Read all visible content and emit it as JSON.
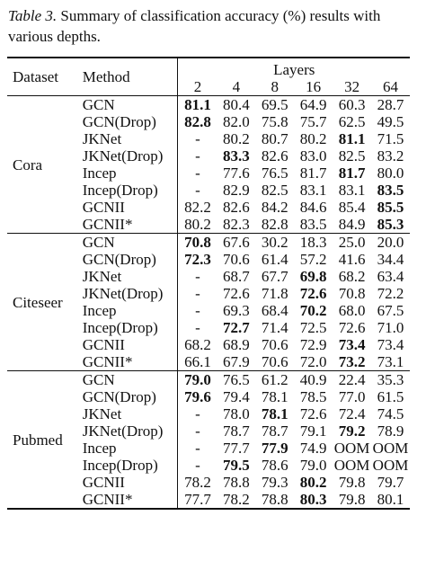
{
  "caption": {
    "label": "Table 3.",
    "text": " Summary of classification accuracy (%) results with various depths."
  },
  "header": {
    "dataset": "Dataset",
    "method": "Method",
    "layers": "Layers",
    "depths": [
      "2",
      "4",
      "8",
      "16",
      "32",
      "64"
    ]
  },
  "groups": [
    {
      "dataset": "Cora",
      "rows": [
        {
          "method": "GCN",
          "values": [
            "81.1",
            "80.4",
            "69.5",
            "64.9",
            "60.3",
            "28.7"
          ],
          "bold": [
            0
          ]
        },
        {
          "method": "GCN(Drop)",
          "values": [
            "82.8",
            "82.0",
            "75.8",
            "75.7",
            "62.5",
            "49.5"
          ],
          "bold": [
            0
          ]
        },
        {
          "method": "JKNet",
          "values": [
            "-",
            "80.2",
            "80.7",
            "80.2",
            "81.1",
            "71.5"
          ],
          "bold": [
            4
          ]
        },
        {
          "method": "JKNet(Drop)",
          "values": [
            "-",
            "83.3",
            "82.6",
            "83.0",
            "82.5",
            "83.2"
          ],
          "bold": [
            1
          ]
        },
        {
          "method": "Incep",
          "values": [
            "-",
            "77.6",
            "76.5",
            "81.7",
            "81.7",
            "80.0"
          ],
          "bold": [
            4
          ]
        },
        {
          "method": "Incep(Drop)",
          "values": [
            "-",
            "82.9",
            "82.5",
            "83.1",
            "83.1",
            "83.5"
          ],
          "bold": [
            5
          ]
        },
        {
          "method": "GCNII",
          "values": [
            "82.2",
            "82.6",
            "84.2",
            "84.6",
            "85.4",
            "85.5"
          ],
          "bold": [
            5
          ]
        },
        {
          "method": "GCNII*",
          "values": [
            "80.2",
            "82.3",
            "82.8",
            "83.5",
            "84.9",
            "85.3"
          ],
          "bold": [
            5
          ]
        }
      ]
    },
    {
      "dataset": "Citeseer",
      "rows": [
        {
          "method": "GCN",
          "values": [
            "70.8",
            "67.6",
            "30.2",
            "18.3",
            "25.0",
            "20.0"
          ],
          "bold": [
            0
          ]
        },
        {
          "method": "GCN(Drop)",
          "values": [
            "72.3",
            "70.6",
            "61.4",
            "57.2",
            "41.6",
            "34.4"
          ],
          "bold": [
            0
          ]
        },
        {
          "method": "JKNet",
          "values": [
            "-",
            "68.7",
            "67.7",
            "69.8",
            "68.2",
            "63.4"
          ],
          "bold": [
            3
          ]
        },
        {
          "method": "JKNet(Drop)",
          "values": [
            "-",
            "72.6",
            "71.8",
            "72.6",
            "70.8",
            "72.2"
          ],
          "bold": [
            3
          ]
        },
        {
          "method": "Incep",
          "values": [
            "-",
            "69.3",
            "68.4",
            "70.2",
            "68.0",
            "67.5"
          ],
          "bold": [
            3
          ]
        },
        {
          "method": "Incep(Drop)",
          "values": [
            "-",
            "72.7",
            "71.4",
            "72.5",
            "72.6",
            "71.0"
          ],
          "bold": [
            1
          ]
        },
        {
          "method": "GCNII",
          "values": [
            "68.2",
            "68.9",
            "70.6",
            "72.9",
            "73.4",
            "73.4"
          ],
          "bold": [
            4
          ]
        },
        {
          "method": "GCNII*",
          "values": [
            "66.1",
            "67.9",
            "70.6",
            "72.0",
            "73.2",
            "73.1"
          ],
          "bold": [
            4
          ]
        }
      ]
    },
    {
      "dataset": "Pubmed",
      "rows": [
        {
          "method": "GCN",
          "values": [
            "79.0",
            "76.5",
            "61.2",
            "40.9",
            "22.4",
            "35.3"
          ],
          "bold": [
            0
          ]
        },
        {
          "method": "GCN(Drop)",
          "values": [
            "79.6",
            "79.4",
            "78.1",
            "78.5",
            "77.0",
            "61.5"
          ],
          "bold": [
            0
          ]
        },
        {
          "method": "JKNet",
          "values": [
            "-",
            "78.0",
            "78.1",
            "72.6",
            "72.4",
            "74.5"
          ],
          "bold": [
            2
          ]
        },
        {
          "method": "JKNet(Drop)",
          "values": [
            "-",
            "78.7",
            "78.7",
            "79.1",
            "79.2",
            "78.9"
          ],
          "bold": [
            4
          ]
        },
        {
          "method": "Incep",
          "values": [
            "-",
            "77.7",
            "77.9",
            "74.9",
            "OOM",
            "OOM"
          ],
          "bold": [
            2
          ]
        },
        {
          "method": "Incep(Drop)",
          "values": [
            "-",
            "79.5",
            "78.6",
            "79.0",
            "OOM",
            "OOM"
          ],
          "bold": [
            1
          ]
        },
        {
          "method": "GCNII",
          "values": [
            "78.2",
            "78.8",
            "79.3",
            "80.2",
            "79.8",
            "79.7"
          ],
          "bold": [
            3
          ]
        },
        {
          "method": "GCNII*",
          "values": [
            "77.7",
            "78.2",
            "78.8",
            "80.3",
            "79.8",
            "80.1"
          ],
          "bold": [
            3
          ]
        }
      ]
    }
  ]
}
